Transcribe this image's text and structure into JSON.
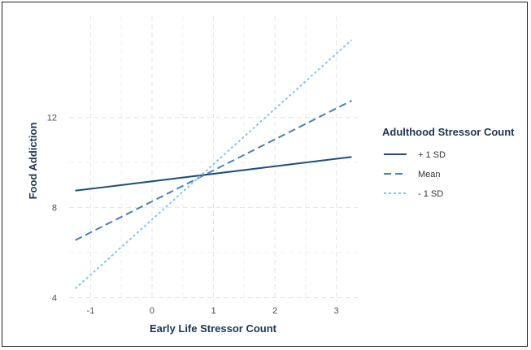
{
  "chart_data": {
    "type": "line",
    "xlabel": "Early Life Stressor Count",
    "ylabel": "Food Addiction",
    "xlim": [
      -1.35,
      3.35
    ],
    "ylim": [
      3.8,
      16.5
    ],
    "x_ticks": [
      -1,
      0,
      1,
      2,
      3
    ],
    "x_tick_labels": [
      "-1",
      "0",
      "1",
      "2",
      "3"
    ],
    "y_ticks": [
      4,
      8,
      12
    ],
    "y_tick_labels": [
      "4",
      "8",
      "12"
    ],
    "grid": true,
    "legend": {
      "title": "Adulthood Stressor Count",
      "position": "right"
    },
    "series": [
      {
        "name": "+ 1 SD",
        "color": "#1f4e79",
        "dash": "solid",
        "x": [
          -1.25,
          3.25
        ],
        "y": [
          8.75,
          10.25
        ]
      },
      {
        "name": "Mean",
        "color": "#4a7fb5",
        "dash": "dashed",
        "x": [
          -1.25,
          3.25
        ],
        "y": [
          6.55,
          12.75
        ]
      },
      {
        "name": "- 1 SD",
        "color": "#87c4ee",
        "dash": "dotted",
        "x": [
          -1.25,
          3.25
        ],
        "y": [
          4.4,
          15.45
        ]
      }
    ]
  }
}
